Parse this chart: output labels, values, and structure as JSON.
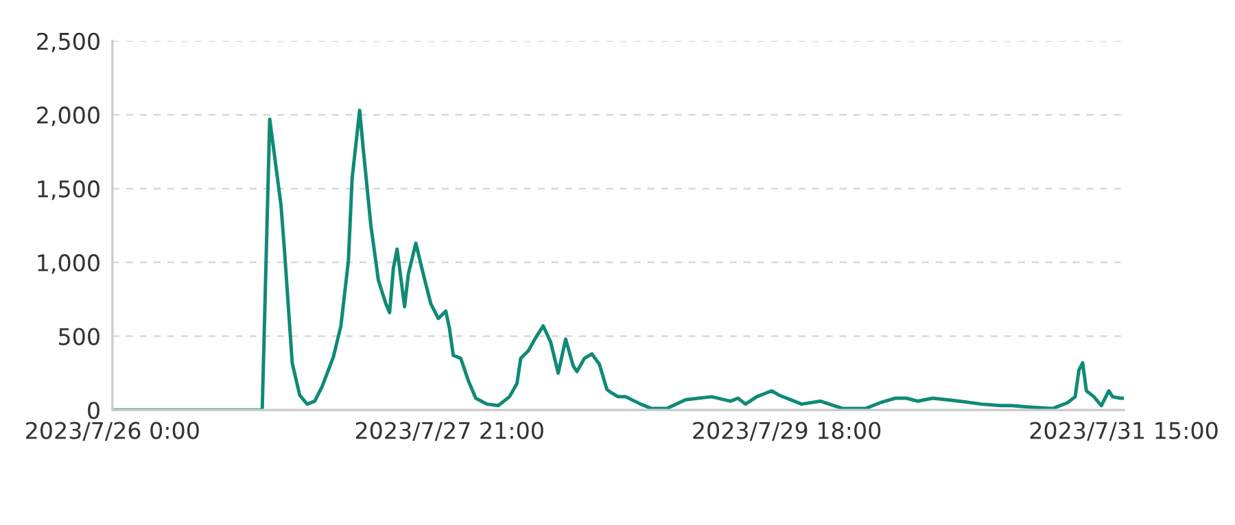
{
  "chart_data": {
    "type": "line",
    "x": [
      "2023-07-26T00:00",
      "2023-07-26T19:30",
      "2023-07-26T20:00",
      "2023-07-26T21:00",
      "2023-07-26T22:30",
      "2023-07-26T23:00",
      "2023-07-27T00:00",
      "2023-07-27T01:00",
      "2023-07-27T02:00",
      "2023-07-27T03:00",
      "2023-07-27T04:00",
      "2023-07-27T05:30",
      "2023-07-27T06:30",
      "2023-07-27T07:30",
      "2023-07-27T08:00",
      "2023-07-27T09:00",
      "2023-07-27T09:30",
      "2023-07-27T10:30",
      "2023-07-27T11:30",
      "2023-07-27T12:30",
      "2023-07-27T13:00",
      "2023-07-27T13:30",
      "2023-07-27T14:00",
      "2023-07-27T15:00",
      "2023-07-27T15:30",
      "2023-07-27T16:30",
      "2023-07-27T17:30",
      "2023-07-27T18:30",
      "2023-07-27T19:30",
      "2023-07-27T20:30",
      "2023-07-27T21:00",
      "2023-07-27T21:30",
      "2023-07-27T22:30",
      "2023-07-27T23:30",
      "2023-07-28T00:30",
      "2023-07-28T02:00",
      "2023-07-28T03:30",
      "2023-07-28T05:00",
      "2023-07-28T06:00",
      "2023-07-28T06:30",
      "2023-07-28T07:30",
      "2023-07-28T08:30",
      "2023-07-28T09:30",
      "2023-07-28T10:30",
      "2023-07-28T11:30",
      "2023-07-28T12:30",
      "2023-07-28T13:30",
      "2023-07-28T14:00",
      "2023-07-28T15:00",
      "2023-07-28T16:00",
      "2023-07-28T17:00",
      "2023-07-28T18:00",
      "2023-07-28T18:30",
      "2023-07-28T19:30",
      "2023-07-28T20:30",
      "2023-07-28T22:30",
      "2023-07-29T00:00",
      "2023-07-29T02:00",
      "2023-07-29T04:30",
      "2023-07-29T08:00",
      "2023-07-29T10:30",
      "2023-07-29T11:30",
      "2023-07-29T12:30",
      "2023-07-29T14:00",
      "2023-07-29T16:00",
      "2023-07-29T17:00",
      "2023-07-29T18:30",
      "2023-07-29T20:00",
      "2023-07-29T22:30",
      "2023-07-30T01:30",
      "2023-07-30T04:30",
      "2023-07-30T06:30",
      "2023-07-30T08:30",
      "2023-07-30T10:00",
      "2023-07-30T11:30",
      "2023-07-30T13:30",
      "2023-07-30T17:00",
      "2023-07-30T20:00",
      "2023-07-30T22:30",
      "2023-07-31T00:00",
      "2023-07-31T02:30",
      "2023-07-31T05:30",
      "2023-07-31T07:30",
      "2023-07-31T08:30",
      "2023-07-31T09:00",
      "2023-07-31T09:30",
      "2023-07-31T10:00",
      "2023-07-31T11:00",
      "2023-07-31T12:00",
      "2023-07-31T13:00",
      "2023-07-31T13:30",
      "2023-07-31T14:30",
      "2023-07-31T15:00"
    ],
    "series": [
      {
        "color": "#0f8a76",
        "values": [
          0,
          0,
          0,
          1970,
          1390,
          1060,
          320,
          100,
          40,
          60,
          160,
          360,
          570,
          1010,
          1570,
          2030,
          1760,
          1250,
          880,
          720,
          660,
          960,
          1090,
          700,
          920,
          1130,
          920,
          720,
          620,
          670,
          550,
          370,
          350,
          200,
          80,
          40,
          30,
          90,
          180,
          350,
          400,
          490,
          570,
          460,
          250,
          480,
          300,
          260,
          350,
          380,
          310,
          140,
          120,
          90,
          90,
          40,
          10,
          10,
          70,
          90,
          60,
          80,
          40,
          90,
          130,
          100,
          70,
          40,
          60,
          10,
          10,
          50,
          80,
          80,
          60,
          80,
          60,
          40,
          30,
          30,
          20,
          10,
          50,
          90,
          270,
          320,
          130,
          90,
          30,
          130,
          90,
          80,
          80
        ]
      }
    ],
    "xlim": [
      "2023-07-26T00:00",
      "2023-07-31T15:00"
    ],
    "xticks": [
      {
        "value": "2023-07-26T00:00",
        "label": "2023/7/26 0:00"
      },
      {
        "value": "2023-07-27T21:00",
        "label": "2023/7/27 21:00"
      },
      {
        "value": "2023-07-29T18:00",
        "label": "2023/7/29 18:00"
      },
      {
        "value": "2023-07-31T15:00",
        "label": "2023/7/31 15:00"
      }
    ],
    "ylim": [
      0,
      2500
    ],
    "yticks": [
      {
        "value": 0,
        "label": "0"
      },
      {
        "value": 500,
        "label": "500"
      },
      {
        "value": 1000,
        "label": "1,000"
      },
      {
        "value": 1500,
        "label": "1,500"
      },
      {
        "value": 2000,
        "label": "2,000"
      },
      {
        "value": 2500,
        "label": "2,500"
      }
    ],
    "grid": "y",
    "line_style": "solid",
    "marker": "none"
  }
}
